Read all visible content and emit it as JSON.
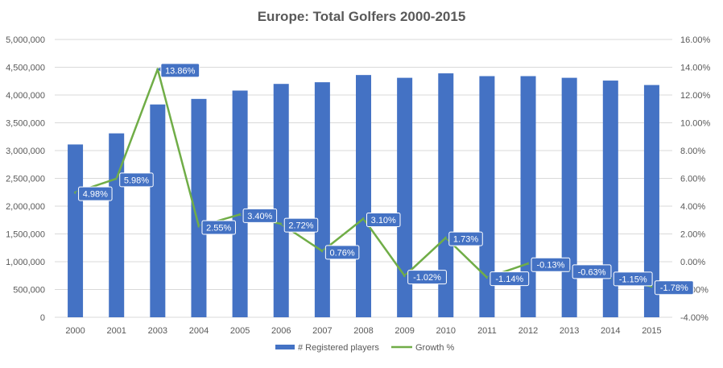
{
  "chart_data": {
    "type": "bar",
    "title": "Europe: Total Golfers 2000-2015",
    "categories": [
      "2000",
      "2001",
      "2003",
      "2004",
      "2005",
      "2006",
      "2007",
      "2008",
      "2009",
      "2010",
      "2011",
      "2012",
      "2013",
      "2014",
      "2015"
    ],
    "series": [
      {
        "name": "# Registered players",
        "type": "bar",
        "axis": "left",
        "color": "#4472C4",
        "values": [
          3110000,
          3310000,
          3830000,
          3930000,
          4080000,
          4200000,
          4230000,
          4360000,
          4310000,
          4390000,
          4340000,
          4340000,
          4310000,
          4260000,
          4180000
        ]
      },
      {
        "name": "Growth %",
        "type": "line",
        "axis": "right",
        "color": "#70AD47",
        "values": [
          4.98,
          5.98,
          13.86,
          2.55,
          3.4,
          2.72,
          0.76,
          3.1,
          -1.02,
          1.73,
          -1.14,
          -0.13,
          -0.63,
          -1.15,
          -1.78
        ],
        "labels": [
          "4.98%",
          "5.98%",
          "13.86%",
          "2.55%",
          "3.40%",
          "2.72%",
          "0.76%",
          "3.10%",
          "-1.02%",
          "1.73%",
          "-1.14%",
          "-0.13%",
          "-0.63%",
          "-1.15%",
          "-1.78%"
        ]
      }
    ],
    "y_left": {
      "min": 0,
      "max": 5000000,
      "ticks": [
        0,
        500000,
        1000000,
        1500000,
        2000000,
        2500000,
        3000000,
        3500000,
        4000000,
        4500000,
        5000000
      ],
      "tick_labels": [
        "0",
        "500,000",
        "1,000,000",
        "1,500,000",
        "2,000,000",
        "2,500,000",
        "3,000,000",
        "3,500,000",
        "4,000,000",
        "4,500,000",
        "5,000,000"
      ]
    },
    "y_right": {
      "min": -4,
      "max": 16,
      "ticks": [
        -4,
        -2,
        0,
        2,
        4,
        6,
        8,
        10,
        12,
        14,
        16
      ],
      "tick_labels": [
        "-4.00%",
        "-2.00%",
        "0.00%",
        "2.00%",
        "4.00%",
        "6.00%",
        "8.00%",
        "10.00%",
        "12.00%",
        "14.00%",
        "16.00%"
      ]
    },
    "grid": true,
    "legend_position": "bottom",
    "callout_color": "#4472C4"
  }
}
